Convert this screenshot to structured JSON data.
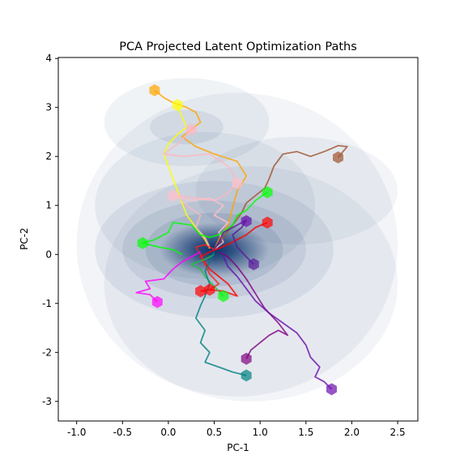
{
  "chart_data": {
    "type": "line",
    "title": "PCA Projected Latent Optimization Paths",
    "xlabel": "PC-1",
    "ylabel": "PC-2",
    "xlim": [
      -1.2,
      2.72
    ],
    "ylim": [
      -3.4,
      4.02
    ],
    "xticks": [
      "-1.0",
      "-0.5",
      "0.0",
      "0.5",
      "1.0",
      "1.5",
      "2.0",
      "2.5"
    ],
    "xtick_values": [
      -1.0,
      -0.5,
      0.0,
      0.5,
      1.0,
      1.5,
      2.0,
      2.5
    ],
    "yticks": [
      "-3",
      "-2",
      "-1",
      "0",
      "1",
      "2",
      "3",
      "4"
    ],
    "ytick_values": [
      -3,
      -2,
      -1,
      0,
      1,
      2,
      3,
      4
    ],
    "grid": false,
    "background": "density-contour",
    "density_color": "#08306b",
    "series": [
      {
        "color": "#ffa500",
        "points": [
          [
            -0.15,
            3.35
          ],
          [
            -0.05,
            3.2
          ],
          [
            0.05,
            3.1
          ],
          [
            0.2,
            3.0
          ],
          [
            0.3,
            2.9
          ],
          [
            0.35,
            2.7
          ],
          [
            0.25,
            2.55
          ],
          [
            0.15,
            2.4
          ],
          [
            0.3,
            2.2
          ],
          [
            0.5,
            2.05
          ],
          [
            0.75,
            1.9
          ],
          [
            0.85,
            1.6
          ],
          [
            0.75,
            1.3
          ],
          [
            0.7,
            0.95
          ],
          [
            0.65,
            0.6
          ],
          [
            0.55,
            0.3
          ],
          [
            0.5,
            0.1
          ]
        ]
      },
      {
        "color": "#ffff00",
        "points": [
          [
            0.1,
            3.05
          ],
          [
            0.15,
            2.8
          ],
          [
            0.2,
            2.6
          ],
          [
            0.1,
            2.45
          ],
          [
            0.0,
            2.25
          ],
          [
            -0.05,
            2.05
          ],
          [
            0.0,
            1.8
          ],
          [
            0.05,
            1.55
          ],
          [
            0.1,
            1.3
          ],
          [
            0.15,
            1.05
          ],
          [
            0.2,
            0.8
          ],
          [
            0.3,
            0.55
          ],
          [
            0.4,
            0.3
          ],
          [
            0.45,
            0.12
          ]
        ]
      },
      {
        "color": "#ffb6c1",
        "points": [
          [
            0.25,
            2.55
          ],
          [
            0.1,
            2.25
          ],
          [
            -0.05,
            2.05
          ],
          [
            0.15,
            2.0
          ],
          [
            0.45,
            2.05
          ],
          [
            0.65,
            1.8
          ],
          [
            0.75,
            1.5
          ],
          [
            0.65,
            1.25
          ],
          [
            0.5,
            1.1
          ],
          [
            0.3,
            1.15
          ],
          [
            0.1,
            1.2
          ],
          [
            0.2,
            1.0
          ],
          [
            0.35,
            0.8
          ],
          [
            0.3,
            0.55
          ],
          [
            0.4,
            0.35
          ],
          [
            0.45,
            0.15
          ]
        ]
      },
      {
        "color": "#ffc0cb",
        "points": [
          [
            0.05,
            1.2
          ],
          [
            0.25,
            1.1
          ],
          [
            0.45,
            1.15
          ],
          [
            0.6,
            1.0
          ],
          [
            0.5,
            0.8
          ],
          [
            0.65,
            0.65
          ],
          [
            0.55,
            0.45
          ],
          [
            0.6,
            0.25
          ],
          [
            0.5,
            0.1
          ]
        ]
      },
      {
        "color": "#a0522d",
        "points": [
          [
            1.85,
            1.98
          ],
          [
            1.95,
            2.2
          ],
          [
            1.85,
            2.22
          ],
          [
            1.7,
            2.1
          ],
          [
            1.55,
            2.0
          ],
          [
            1.4,
            2.1
          ],
          [
            1.25,
            2.05
          ],
          [
            1.15,
            1.8
          ],
          [
            1.1,
            1.55
          ],
          [
            1.05,
            1.35
          ],
          [
            0.95,
            1.2
          ],
          [
            0.85,
            1.05
          ],
          [
            0.8,
            0.85
          ],
          [
            0.7,
            0.6
          ],
          [
            0.6,
            0.35
          ],
          [
            0.5,
            0.12
          ]
        ]
      },
      {
        "color": "#00ff00",
        "points": [
          [
            1.08,
            1.27
          ],
          [
            0.95,
            1.1
          ],
          [
            0.85,
            0.9
          ],
          [
            0.75,
            0.8
          ],
          [
            0.7,
            0.6
          ],
          [
            0.55,
            0.4
          ],
          [
            0.45,
            0.35
          ],
          [
            0.35,
            0.4
          ],
          [
            0.25,
            0.6
          ],
          [
            0.05,
            0.65
          ],
          [
            0.0,
            0.45
          ],
          [
            -0.15,
            0.3
          ],
          [
            -0.28,
            0.23
          ],
          [
            -0.1,
            0.15
          ],
          [
            0.05,
            0.1
          ],
          [
            0.15,
            0.0
          ]
        ]
      },
      {
        "color": "#ff0000",
        "points": [
          [
            1.08,
            0.65
          ],
          [
            0.95,
            0.55
          ],
          [
            0.85,
            0.4
          ],
          [
            0.7,
            0.25
          ],
          [
            0.55,
            0.12
          ],
          [
            0.45,
            0.05
          ],
          [
            0.35,
            -0.05
          ],
          [
            0.45,
            -0.3
          ],
          [
            0.55,
            -0.45
          ],
          [
            0.65,
            -0.6
          ],
          [
            0.75,
            -0.85
          ],
          [
            0.6,
            -0.75
          ],
          [
            0.45,
            -0.72
          ],
          [
            0.35,
            -0.75
          ]
        ]
      },
      {
        "color": "#ff2020",
        "points": [
          [
            0.45,
            -0.72
          ],
          [
            0.55,
            -0.6
          ],
          [
            0.45,
            -0.4
          ],
          [
            0.4,
            -0.2
          ],
          [
            0.35,
            0.0
          ],
          [
            0.3,
            0.15
          ],
          [
            0.4,
            0.2
          ],
          [
            0.5,
            0.1
          ]
        ]
      },
      {
        "color": "#20c040",
        "points": [
          [
            0.6,
            -0.85
          ],
          [
            0.5,
            -0.65
          ],
          [
            0.4,
            -0.45
          ],
          [
            0.35,
            -0.3
          ],
          [
            0.25,
            -0.2
          ],
          [
            0.4,
            -0.1
          ],
          [
            0.5,
            0.0
          ]
        ]
      },
      {
        "color": "#ff00ff",
        "points": [
          [
            -0.12,
            -0.97
          ],
          [
            -0.2,
            -0.82
          ],
          [
            -0.35,
            -0.78
          ],
          [
            -0.2,
            -0.7
          ],
          [
            -0.25,
            -0.55
          ],
          [
            -0.05,
            -0.5
          ],
          [
            0.05,
            -0.3
          ],
          [
            0.15,
            -0.15
          ],
          [
            0.25,
            -0.05
          ],
          [
            0.35,
            0.05
          ]
        ]
      },
      {
        "color": "#008080",
        "points": [
          [
            0.85,
            -2.47
          ],
          [
            0.7,
            -2.4
          ],
          [
            0.55,
            -2.3
          ],
          [
            0.4,
            -2.2
          ],
          [
            0.45,
            -2.0
          ],
          [
            0.35,
            -1.8
          ],
          [
            0.4,
            -1.55
          ],
          [
            0.3,
            -1.3
          ],
          [
            0.35,
            -1.05
          ],
          [
            0.4,
            -0.85
          ],
          [
            0.45,
            -0.6
          ],
          [
            0.4,
            -0.35
          ],
          [
            0.45,
            -0.15
          ],
          [
            0.5,
            0.05
          ]
        ]
      },
      {
        "color": "#800080",
        "points": [
          [
            0.85,
            -2.13
          ],
          [
            0.9,
            -1.95
          ],
          [
            1.0,
            -1.8
          ],
          [
            1.1,
            -1.65
          ],
          [
            1.2,
            -1.55
          ],
          [
            1.3,
            -1.65
          ],
          [
            1.2,
            -1.4
          ],
          [
            1.05,
            -1.1
          ],
          [
            0.95,
            -0.8
          ],
          [
            0.85,
            -0.5
          ],
          [
            0.75,
            -0.25
          ],
          [
            0.65,
            -0.05
          ],
          [
            0.55,
            0.05
          ]
        ]
      },
      {
        "color": "#6a0dad",
        "points": [
          [
            1.78,
            -2.75
          ],
          [
            1.7,
            -2.6
          ],
          [
            1.6,
            -2.5
          ],
          [
            1.65,
            -2.3
          ],
          [
            1.55,
            -2.1
          ],
          [
            1.5,
            -1.85
          ],
          [
            1.4,
            -1.6
          ],
          [
            1.25,
            -1.4
          ],
          [
            1.1,
            -1.2
          ],
          [
            0.95,
            -0.95
          ],
          [
            0.85,
            -0.7
          ],
          [
            0.75,
            -0.45
          ],
          [
            0.65,
            -0.25
          ],
          [
            0.6,
            -0.05
          ]
        ]
      },
      {
        "color": "#5a189a",
        "points": [
          [
            0.93,
            -0.2
          ],
          [
            0.85,
            -0.05
          ],
          [
            0.75,
            0.15
          ],
          [
            0.7,
            0.4
          ],
          [
            0.8,
            0.55
          ],
          [
            0.85,
            0.7
          ],
          [
            0.75,
            0.6
          ],
          [
            0.6,
            0.45
          ],
          [
            0.55,
            0.25
          ],
          [
            0.5,
            0.1
          ]
        ]
      }
    ],
    "markers": [
      {
        "color": "#ffa500",
        "x": -0.15,
        "y": 3.35
      },
      {
        "color": "#ffff00",
        "x": 0.1,
        "y": 3.05
      },
      {
        "color": "#ffb6c1",
        "x": 0.25,
        "y": 2.55
      },
      {
        "color": "#ffc0cb",
        "x": 0.05,
        "y": 1.2
      },
      {
        "color": "#ffc0cb",
        "x": 0.75,
        "y": 1.45
      },
      {
        "color": "#a0522d",
        "x": 1.85,
        "y": 1.98
      },
      {
        "color": "#00ff00",
        "x": 1.08,
        "y": 1.27
      },
      {
        "color": "#00ff00",
        "x": -0.28,
        "y": 0.23
      },
      {
        "color": "#00ff00",
        "x": 0.6,
        "y": -0.85
      },
      {
        "color": "#ff0000",
        "x": 1.08,
        "y": 0.65
      },
      {
        "color": "#ff0000",
        "x": 0.35,
        "y": -0.75
      },
      {
        "color": "#ff0000",
        "x": 0.45,
        "y": -0.72
      },
      {
        "color": "#ff00ff",
        "x": -0.12,
        "y": -0.97
      },
      {
        "color": "#008080",
        "x": 0.85,
        "y": -2.47
      },
      {
        "color": "#800080",
        "x": 0.85,
        "y": -2.13
      },
      {
        "color": "#6a0dad",
        "x": 1.78,
        "y": -2.75
      },
      {
        "color": "#5a189a",
        "x": 0.93,
        "y": -0.2
      },
      {
        "color": "#6a0dad",
        "x": 0.85,
        "y": 0.68
      }
    ]
  }
}
